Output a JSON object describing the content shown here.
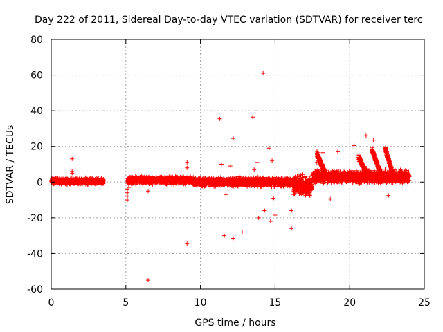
{
  "chart_data": {
    "type": "scatter",
    "title": "Day 222 of 2011, Sidereal Day-to-day VTEC variation (SDTVAR) for receiver terc",
    "xlabel": "GPS time / hours",
    "ylabel": "SDTVAR / TECUs",
    "xlim": [
      0,
      25
    ],
    "ylim": [
      -60,
      80
    ],
    "xticks": [
      0,
      5,
      10,
      15,
      20,
      25
    ],
    "yticks": [
      -60,
      -40,
      -20,
      0,
      20,
      40,
      60,
      80
    ],
    "grid": true,
    "marker": "+",
    "marker_color": "#ff0000",
    "series": [
      {
        "name": "SDTVAR",
        "dense_bands": [
          {
            "x": [
              0.0,
              3.5
            ],
            "y_center": 0.5,
            "spread": 2.5
          },
          {
            "x": [
              5.1,
              9.5
            ],
            "y_center": 1.0,
            "spread": 3.0
          },
          {
            "x": [
              9.5,
              16.2
            ],
            "y_center": 0.0,
            "spread": 3.5
          },
          {
            "x": [
              16.2,
              17.5
            ],
            "y_center": -2.0,
            "spread": 8.0
          },
          {
            "x": [
              17.5,
              24.0
            ],
            "y_center": 3.0,
            "spread": 5.0
          }
        ],
        "outliers": [
          [
            1.4,
            13
          ],
          [
            1.4,
            6
          ],
          [
            1.4,
            5
          ],
          [
            5.1,
            -4
          ],
          [
            5.1,
            -6
          ],
          [
            5.1,
            -8
          ],
          [
            5.1,
            -10
          ],
          [
            5.2,
            -3
          ],
          [
            6.5,
            -55
          ],
          [
            6.5,
            -5
          ],
          [
            9.1,
            11
          ],
          [
            9.1,
            8
          ],
          [
            9.1,
            -34.5
          ],
          [
            11.3,
            35.5
          ],
          [
            11.4,
            10
          ],
          [
            11.6,
            -30
          ],
          [
            11.7,
            -7
          ],
          [
            12.0,
            9
          ],
          [
            12.2,
            24.5
          ],
          [
            12.2,
            -31.5
          ],
          [
            12.6,
            3
          ],
          [
            12.8,
            -28
          ],
          [
            13.5,
            36.5
          ],
          [
            13.6,
            7
          ],
          [
            13.8,
            11
          ],
          [
            13.9,
            -20
          ],
          [
            14.2,
            61
          ],
          [
            14.3,
            -16
          ],
          [
            14.6,
            19
          ],
          [
            14.7,
            -22
          ],
          [
            14.8,
            12
          ],
          [
            14.9,
            -9
          ],
          [
            15.0,
            -18.5
          ],
          [
            16.1,
            -26
          ],
          [
            16.1,
            -16
          ],
          [
            17.8,
            11
          ],
          [
            18.2,
            16.5
          ],
          [
            18.7,
            -9.5
          ],
          [
            19.2,
            17
          ],
          [
            20.3,
            20.5
          ],
          [
            21.1,
            26
          ],
          [
            21.6,
            23.5
          ],
          [
            22.1,
            -5.5
          ],
          [
            22.6,
            -7.5
          ]
        ],
        "ridges": [
          {
            "x": [
              17.8,
              18.5
            ],
            "y_top": 16
          },
          {
            "x": [
              20.6,
              21.3
            ],
            "y_top": 14
          },
          {
            "x": [
              21.5,
              22.2
            ],
            "y_top": 18
          },
          {
            "x": [
              22.4,
              23.0
            ],
            "y_top": 18
          }
        ]
      }
    ]
  }
}
